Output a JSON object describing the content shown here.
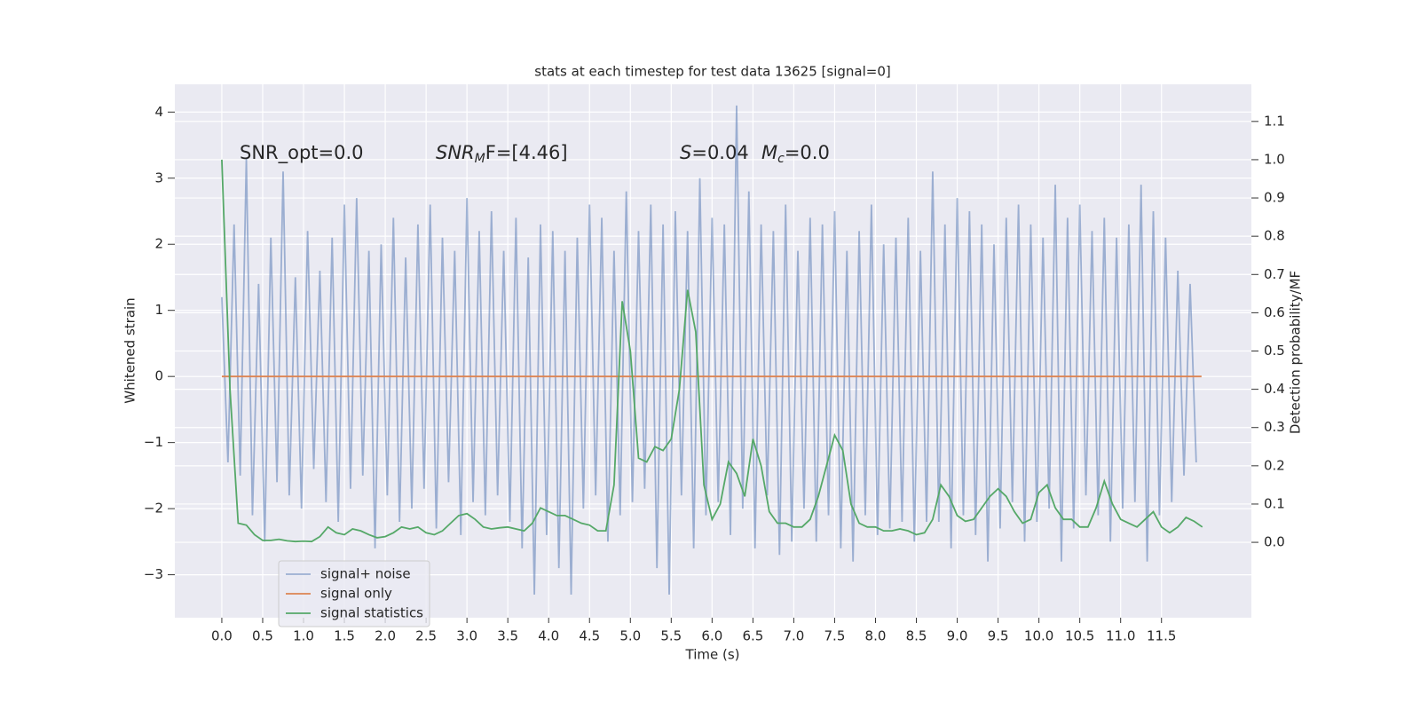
{
  "chart_data": {
    "type": "line",
    "title": "stats at each timestep for test data 13625 [signal=0]",
    "xlabel": "Time (s)",
    "ylabel": "Whitened strain",
    "y2label": "Detection probability/MF",
    "xlim": [
      -0.575,
      12.6
    ],
    "ylim": [
      -3.65,
      4.42
    ],
    "y2lim": [
      -0.197,
      1.197
    ],
    "xticks": [
      {
        "value": 0,
        "label": "0.0"
      },
      {
        "value": 0.5,
        "label": "0.5"
      },
      {
        "value": 1,
        "label": "1.0"
      },
      {
        "value": 1.5,
        "label": "1.5"
      },
      {
        "value": 2,
        "label": "2.0"
      },
      {
        "value": 2.5,
        "label": "2.5"
      },
      {
        "value": 3,
        "label": "3.0"
      },
      {
        "value": 3.5,
        "label": "3.5"
      },
      {
        "value": 4,
        "label": "4.0"
      },
      {
        "value": 4.5,
        "label": "4.5"
      },
      {
        "value": 5,
        "label": "5.0"
      },
      {
        "value": 5.5,
        "label": "5.5"
      },
      {
        "value": 6,
        "label": "6.0"
      },
      {
        "value": 6.5,
        "label": "6.5"
      },
      {
        "value": 7,
        "label": "7.0"
      },
      {
        "value": 7.5,
        "label": "7.5"
      },
      {
        "value": 8,
        "label": "8.0"
      },
      {
        "value": 8.5,
        "label": "8.5"
      },
      {
        "value": 9,
        "label": "9.0"
      },
      {
        "value": 9.5,
        "label": "9.5"
      },
      {
        "value": 10,
        "label": "10.0"
      },
      {
        "value": 10.5,
        "label": "10.5"
      },
      {
        "value": 11,
        "label": "11.0"
      },
      {
        "value": 11.5,
        "label": "11.5"
      }
    ],
    "yticks": [
      {
        "value": -3,
        "label": "−3"
      },
      {
        "value": -2,
        "label": "−2"
      },
      {
        "value": -1,
        "label": "−1"
      },
      0,
      1,
      2,
      3,
      4
    ],
    "y2ticks": [
      {
        "value": 0,
        "label": "0.0"
      },
      {
        "value": 0.1,
        "label": "0.1"
      },
      {
        "value": 0.2,
        "label": "0.2"
      },
      {
        "value": 0.3,
        "label": "0.3"
      },
      {
        "value": 0.4,
        "label": "0.4"
      },
      {
        "value": 0.5,
        "label": "0.5"
      },
      {
        "value": 0.6,
        "label": "0.6"
      },
      {
        "value": 0.7,
        "label": "0.7"
      },
      {
        "value": 0.8,
        "label": "0.8"
      },
      {
        "value": 0.9,
        "label": "0.9"
      },
      {
        "value": 1,
        "label": "1.0"
      },
      {
        "value": 1.1,
        "label": "1.1"
      }
    ],
    "grid": true,
    "legend": "lower left",
    "annotations": [
      {
        "text": "SNR_opt=0.0"
      },
      {
        "main": "SNR",
        "sub": "M",
        "tail": "F=[4.46]"
      },
      {
        "main": "S",
        "tail": "=0.04"
      },
      {
        "main": "M",
        "sub": "c",
        "tail": "=0.0"
      }
    ],
    "series": [
      {
        "name": "signal+ noise",
        "color": "#4c72b0",
        "opacity": 0.5,
        "x": [
          0,
          0.075,
          0.15,
          0.225,
          0.3,
          0.375,
          0.45,
          0.525,
          0.6,
          0.675,
          0.75,
          0.825,
          0.9,
          0.975,
          1.05,
          1.125,
          1.2,
          1.275,
          1.35,
          1.425,
          1.5,
          1.575,
          1.65,
          1.725,
          1.8,
          1.875,
          1.95,
          2.025,
          2.1,
          2.175,
          2.25,
          2.325,
          2.4,
          2.475,
          2.55,
          2.625,
          2.7,
          2.775,
          2.85,
          2.925,
          3,
          3.075,
          3.15,
          3.225,
          3.3,
          3.375,
          3.45,
          3.525,
          3.6,
          3.675,
          3.75,
          3.825,
          3.9,
          3.975,
          4.05,
          4.125,
          4.2,
          4.275,
          4.35,
          4.425,
          4.5,
          4.575,
          4.65,
          4.725,
          4.8,
          4.875,
          4.95,
          5.025,
          5.1,
          5.175,
          5.25,
          5.325,
          5.4,
          5.475,
          5.55,
          5.625,
          5.7,
          5.775,
          5.85,
          5.925,
          6,
          6.075,
          6.15,
          6.225,
          6.3,
          6.375,
          6.45,
          6.525,
          6.6,
          6.675,
          6.75,
          6.825,
          6.9,
          6.975,
          7.05,
          7.125,
          7.2,
          7.275,
          7.35,
          7.425,
          7.5,
          7.575,
          7.65,
          7.725,
          7.8,
          7.875,
          7.95,
          8.025,
          8.1,
          8.175,
          8.25,
          8.325,
          8.4,
          8.475,
          8.55,
          8.625,
          8.7,
          8.775,
          8.85,
          8.925,
          9,
          9.075,
          9.15,
          9.225,
          9.3,
          9.375,
          9.45,
          9.525,
          9.6,
          9.675,
          9.75,
          9.825,
          9.9,
          9.975,
          10.05,
          10.125,
          10.2,
          10.275,
          10.35,
          10.425,
          10.5,
          10.575,
          10.65,
          10.725,
          10.8,
          10.875,
          10.95,
          11.025,
          11.1,
          11.175,
          11.25,
          11.325,
          11.4,
          11.475,
          11.55,
          11.625,
          11.7,
          11.775,
          11.85,
          11.925
        ],
        "values": [
          1.2,
          -1.3,
          2.3,
          -1.5,
          3.3,
          -2.1,
          1.4,
          -2.5,
          2.1,
          -1.6,
          3.1,
          -1.8,
          1.5,
          -2.0,
          2.2,
          -1.4,
          1.6,
          -1.9,
          2.1,
          -2.2,
          2.6,
          -1.7,
          2.7,
          -1.5,
          1.9,
          -2.6,
          2.0,
          -1.8,
          2.4,
          -2.2,
          1.8,
          -2.0,
          2.3,
          -1.7,
          2.6,
          -2.3,
          2.1,
          -1.6,
          1.9,
          -2.4,
          2.7,
          -1.9,
          2.2,
          -2.1,
          2.5,
          -1.8,
          1.9,
          -2.2,
          2.4,
          -2.6,
          1.8,
          -3.3,
          2.3,
          -2.4,
          2.2,
          -2.9,
          1.9,
          -3.3,
          2.1,
          -2.0,
          2.6,
          -1.8,
          2.4,
          -2.5,
          1.9,
          -2.1,
          2.8,
          -1.9,
          2.2,
          -1.7,
          2.6,
          -2.9,
          2.3,
          -3.3,
          2.5,
          -1.8,
          2.2,
          -2.6,
          3.0,
          -2.1,
          2.4,
          -1.9,
          2.3,
          -2.4,
          4.1,
          -2.0,
          2.8,
          -2.6,
          2.3,
          -1.8,
          2.2,
          -2.7,
          2.6,
          -2.5,
          1.9,
          -2.0,
          2.4,
          -2.5,
          2.3,
          -2.1,
          2.5,
          -2.6,
          1.9,
          -2.8,
          2.2,
          -2.1,
          2.6,
          -2.4,
          2.0,
          -2.3,
          2.1,
          -2.2,
          2.4,
          -2.5,
          1.9,
          -2.2,
          3.1,
          -2.2,
          2.3,
          -2.6,
          2.7,
          -2.1,
          2.5,
          -2.4,
          2.3,
          -2.8,
          2.0,
          -2.3,
          2.4,
          -1.9,
          2.6,
          -2.5,
          2.3,
          -2.2,
          2.1,
          -2.0,
          2.9,
          -2.8,
          2.4,
          -2.3,
          2.6,
          -1.8,
          2.2,
          -2.1,
          2.4,
          -2.5,
          2.1,
          -2.0,
          2.3,
          -1.9,
          2.9,
          -2.8,
          2.5,
          -2.1,
          2.1,
          -1.9,
          1.6,
          -1.5,
          1.4,
          -1.3
        ]
      },
      {
        "name": "signal only",
        "color": "#dd8452",
        "x": [
          0,
          11.99
        ],
        "values": [
          0,
          0
        ]
      },
      {
        "name": "signal statistics",
        "color": "#55a868",
        "axis": "y2",
        "x": [
          0,
          0.1,
          0.2,
          0.3,
          0.4,
          0.5,
          0.6,
          0.7,
          0.8,
          0.9,
          1,
          1.1,
          1.2,
          1.3,
          1.4,
          1.5,
          1.6,
          1.7,
          1.8,
          1.9,
          2,
          2.1,
          2.2,
          2.3,
          2.4,
          2.5,
          2.6,
          2.7,
          2.8,
          2.9,
          3,
          3.1,
          3.2,
          3.3,
          3.4,
          3.5,
          3.6,
          3.7,
          3.8,
          3.9,
          4,
          4.1,
          4.2,
          4.3,
          4.4,
          4.5,
          4.6,
          4.7,
          4.8,
          4.9,
          5,
          5.1,
          5.2,
          5.3,
          5.4,
          5.5,
          5.6,
          5.7,
          5.8,
          5.9,
          6,
          6.1,
          6.2,
          6.3,
          6.4,
          6.5,
          6.6,
          6.7,
          6.8,
          6.9,
          7,
          7.1,
          7.2,
          7.3,
          7.4,
          7.5,
          7.6,
          7.7,
          7.8,
          7.9,
          8,
          8.1,
          8.2,
          8.3,
          8.4,
          8.5,
          8.6,
          8.7,
          8.8,
          8.9,
          9,
          9.1,
          9.2,
          9.3,
          9.4,
          9.5,
          9.6,
          9.7,
          9.8,
          9.9,
          10,
          10.1,
          10.2,
          10.3,
          10.4,
          10.5,
          10.6,
          10.7,
          10.8,
          10.9,
          11,
          11.1,
          11.2,
          11.3,
          11.4,
          11.5,
          11.6,
          11.7,
          11.8,
          11.9,
          12
        ],
        "values": [
          1.0,
          0.4,
          0.05,
          0.045,
          0.02,
          0.005,
          0.005,
          0.008,
          0.004,
          0.002,
          0.003,
          0.002,
          0.015,
          0.04,
          0.025,
          0.02,
          0.035,
          0.03,
          0.02,
          0.012,
          0.015,
          0.025,
          0.04,
          0.035,
          0.04,
          0.025,
          0.02,
          0.03,
          0.05,
          0.07,
          0.075,
          0.06,
          0.04,
          0.035,
          0.038,
          0.04,
          0.035,
          0.03,
          0.05,
          0.09,
          0.08,
          0.07,
          0.07,
          0.06,
          0.05,
          0.045,
          0.03,
          0.03,
          0.15,
          0.63,
          0.5,
          0.22,
          0.21,
          0.25,
          0.24,
          0.27,
          0.4,
          0.66,
          0.55,
          0.15,
          0.06,
          0.1,
          0.21,
          0.18,
          0.12,
          0.27,
          0.2,
          0.08,
          0.05,
          0.05,
          0.04,
          0.04,
          0.06,
          0.12,
          0.2,
          0.28,
          0.24,
          0.1,
          0.05,
          0.04,
          0.04,
          0.03,
          0.03,
          0.035,
          0.03,
          0.02,
          0.025,
          0.06,
          0.15,
          0.12,
          0.07,
          0.055,
          0.06,
          0.09,
          0.12,
          0.14,
          0.12,
          0.08,
          0.05,
          0.06,
          0.13,
          0.15,
          0.09,
          0.06,
          0.06,
          0.04,
          0.04,
          0.09,
          0.16,
          0.1,
          0.06,
          0.05,
          0.04,
          0.06,
          0.08,
          0.04,
          0.025,
          0.04,
          0.065,
          0.055,
          0.04
        ]
      }
    ]
  }
}
